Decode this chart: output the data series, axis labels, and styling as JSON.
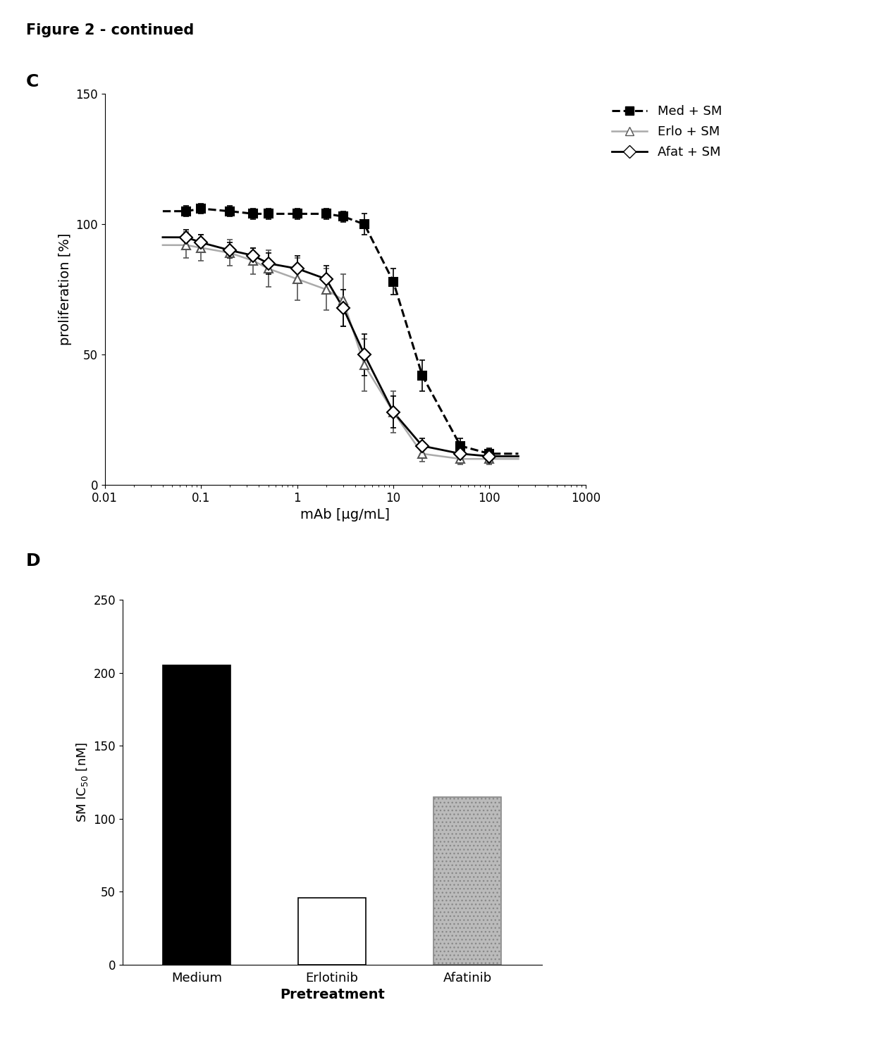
{
  "figure_title": "Figure 2 - continued",
  "panel_c_label": "C",
  "panel_d_label": "D",
  "panel_c": {
    "xlabel": "mAb [μg/mL]",
    "ylabel": "proliferation [%]",
    "ylim": [
      0,
      150
    ],
    "yticks": [
      0,
      50,
      100,
      150
    ],
    "series": [
      {
        "label": "Med + SM",
        "x": [
          0.07,
          0.1,
          0.2,
          0.35,
          0.5,
          1.0,
          2.0,
          3.0,
          5.0,
          10.0,
          20.0,
          50.0,
          100.0
        ],
        "y": [
          105,
          106,
          105,
          104,
          104,
          104,
          104,
          103,
          100,
          78,
          42,
          15,
          12
        ],
        "yerr": [
          2,
          2,
          2,
          2,
          2,
          2,
          2,
          2,
          4,
          5,
          6,
          3,
          2
        ],
        "line_color": "black",
        "marker_color": "black",
        "linestyle": "dashed",
        "marker": "s",
        "marker_filled": true,
        "linewidth": 2.2
      },
      {
        "label": "Erlo + SM",
        "x": [
          0.07,
          0.1,
          0.2,
          0.35,
          0.5,
          1.0,
          2.0,
          3.0,
          5.0,
          10.0,
          20.0,
          50.0,
          100.0
        ],
        "y": [
          92,
          91,
          89,
          86,
          83,
          79,
          75,
          71,
          46,
          28,
          12,
          10,
          10
        ],
        "yerr": [
          5,
          5,
          5,
          5,
          7,
          8,
          8,
          10,
          10,
          8,
          3,
          2,
          2
        ],
        "line_color": "#aaaaaa",
        "marker_color": "#555555",
        "linestyle": "solid",
        "marker": "^",
        "marker_filled": false,
        "linewidth": 1.8
      },
      {
        "label": "Afat + SM",
        "x": [
          0.07,
          0.1,
          0.2,
          0.35,
          0.5,
          1.0,
          2.0,
          3.0,
          5.0,
          10.0,
          20.0,
          50.0,
          100.0
        ],
        "y": [
          95,
          93,
          90,
          88,
          85,
          83,
          79,
          68,
          50,
          28,
          15,
          12,
          11
        ],
        "yerr": [
          3,
          3,
          3,
          3,
          4,
          5,
          5,
          7,
          8,
          6,
          3,
          2,
          2
        ],
        "line_color": "black",
        "marker_color": "black",
        "linestyle": "solid",
        "marker": "D",
        "marker_filled": false,
        "linewidth": 2.0
      }
    ]
  },
  "panel_d": {
    "categories": [
      "Medium",
      "Erlotinib",
      "Afatinib"
    ],
    "values": [
      205,
      46,
      115
    ],
    "bar_colors": [
      "black",
      "white",
      "#bbbbbb"
    ],
    "bar_hatches": [
      null,
      null,
      "..."
    ],
    "bar_edgecolors": [
      "black",
      "black",
      "#888888"
    ],
    "xlabel": "Pretreatment",
    "ylabel": "SM IC$_{50}$ [nM]",
    "ylim": [
      0,
      250
    ],
    "yticks": [
      0,
      50,
      100,
      150,
      200,
      250
    ]
  }
}
